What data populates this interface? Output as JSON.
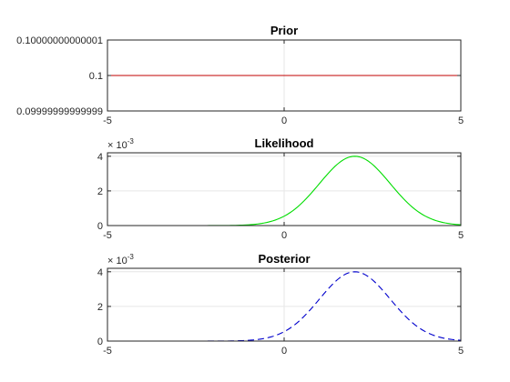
{
  "chart_data": [
    {
      "type": "line",
      "title": "Prior",
      "xlim": [
        -5,
        5
      ],
      "ylim": [
        0.099999999999999,
        0.100000000000001
      ],
      "xticks": [
        -5,
        0,
        5
      ],
      "xtick_labels": [
        "-5",
        "0",
        "5"
      ],
      "yticks": [
        0.099999999999999,
        0.1,
        0.100000000000001
      ],
      "ytick_labels": [
        "0.09999999999999",
        "0.1",
        "0.10000000000001"
      ],
      "grid": true,
      "exponent_label": "",
      "series": [
        {
          "style": "solid",
          "color": "#c00000",
          "x": [
            -5,
            5
          ],
          "y": [
            0.1,
            0.1
          ]
        }
      ]
    },
    {
      "type": "line",
      "title": "Likelihood",
      "xlim": [
        -5,
        5
      ],
      "ylim": [
        0,
        0.0042
      ],
      "xticks": [
        -5,
        0,
        5
      ],
      "xtick_labels": [
        "-5",
        "0",
        "5"
      ],
      "yticks": [
        0,
        0.002,
        0.004
      ],
      "ytick_labels": [
        "0",
        "2",
        "4"
      ],
      "grid": true,
      "exponent_label": "× 10",
      "exponent": "-3",
      "series": [
        {
          "style": "solid",
          "color": "#00dd00",
          "curve": "gaussian",
          "mean": 2,
          "sigma": 1,
          "peak": 0.004,
          "xrange": [
            -5,
            5
          ]
        }
      ]
    },
    {
      "type": "line",
      "title": "Posterior",
      "xlim": [
        -5,
        5
      ],
      "ylim": [
        0,
        0.0042
      ],
      "xticks": [
        -5,
        0,
        5
      ],
      "xtick_labels": [
        "-5",
        "0",
        "5"
      ],
      "yticks": [
        0,
        0.002,
        0.004
      ],
      "ytick_labels": [
        "0",
        "2",
        "4"
      ],
      "grid": true,
      "exponent_label": "× 10",
      "exponent": "-3",
      "series": [
        {
          "style": "dashed",
          "color": "#0000cc",
          "curve": "gaussian",
          "mean": 2,
          "sigma": 1,
          "peak": 0.004,
          "xrange": [
            -5,
            5
          ]
        }
      ]
    }
  ]
}
